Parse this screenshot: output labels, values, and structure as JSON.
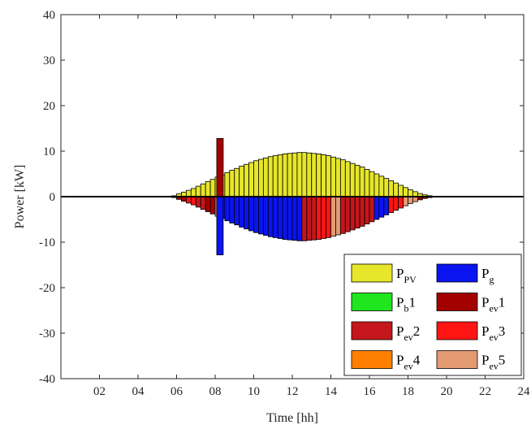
{
  "chart_data": {
    "type": "bar",
    "title": "",
    "xlabel": "Time [hh]",
    "ylabel": "Power [kW]",
    "xlim": [
      0,
      24
    ],
    "ylim": [
      -40,
      40
    ],
    "xticks": [
      2,
      4,
      6,
      8,
      10,
      12,
      14,
      16,
      18,
      20,
      22,
      24
    ],
    "xtick_labels": [
      "02",
      "04",
      "06",
      "08",
      "10",
      "12",
      "14",
      "16",
      "18",
      "20",
      "22",
      "24"
    ],
    "yticks": [
      -40,
      -30,
      -20,
      -10,
      0,
      10,
      20,
      30,
      40
    ],
    "legend_position": "bottom-right",
    "legend": [
      {
        "key": "pv",
        "base": "P",
        "sub": "PV",
        "suffix": "",
        "color": "#e6e62a"
      },
      {
        "key": "g",
        "base": "P",
        "sub": "g",
        "suffix": "",
        "color": "#0a14f0"
      },
      {
        "key": "b1",
        "base": "P",
        "sub": "b",
        "suffix": "1",
        "color": "#1fe61f"
      },
      {
        "key": "ev1",
        "base": "P",
        "sub": "ev",
        "suffix": "1",
        "color": "#a30000"
      },
      {
        "key": "ev2",
        "base": "P",
        "sub": "ev",
        "suffix": "2",
        "color": "#c4161c"
      },
      {
        "key": "ev3",
        "base": "P",
        "sub": "ev",
        "suffix": "3",
        "color": "#ff1414"
      },
      {
        "key": "ev4",
        "base": "P",
        "sub": "ev",
        "suffix": "4",
        "color": "#ff8000"
      },
      {
        "key": "ev5",
        "base": "P",
        "sub": "ev",
        "suffix": "5",
        "color": "#e39a72"
      }
    ],
    "bar_width_h": 0.25,
    "pv_series": {
      "name": "P_PV",
      "start_time": 5.75,
      "values": [
        0.2,
        0.6,
        1.0,
        1.4,
        1.8,
        2.3,
        2.8,
        3.3,
        3.8,
        4.3,
        4.8,
        5.3,
        5.8,
        6.2,
        6.7,
        7.1,
        7.5,
        7.9,
        8.2,
        8.5,
        8.8,
        9.0,
        9.2,
        9.4,
        9.5,
        9.6,
        9.7,
        9.7,
        9.6,
        9.5,
        9.4,
        9.2,
        9.0,
        8.7,
        8.4,
        8.1,
        7.7,
        7.3,
        6.9,
        6.5,
        6.0,
        5.5,
        5.0,
        4.5,
        4.0,
        3.5,
        3.0,
        2.5,
        2.0,
        1.5,
        1.1,
        0.7,
        0.4,
        0.2,
        0.1,
        0.05
      ]
    },
    "negative_segments": [
      {
        "series": "ev1",
        "from": 5.75,
        "to": 6.5
      },
      {
        "series": "ev3",
        "from": 6.5,
        "to": 7.0
      },
      {
        "series": "ev2",
        "from": 7.0,
        "to": 7.5
      },
      {
        "series": "ev1",
        "from": 7.5,
        "to": 8.0
      },
      {
        "series": "ev5",
        "from": 8.0,
        "to": 8.25
      },
      {
        "series": "g",
        "from": 8.25,
        "to": 12.5
      },
      {
        "series": "ev2",
        "from": 12.5,
        "to": 13.25
      },
      {
        "series": "ev3",
        "from": 13.25,
        "to": 14.0
      },
      {
        "series": "ev5",
        "from": 14.0,
        "to": 14.5
      },
      {
        "series": "ev2",
        "from": 14.5,
        "to": 16.25
      },
      {
        "series": "g",
        "from": 16.25,
        "to": 17.0
      },
      {
        "series": "ev3",
        "from": 17.0,
        "to": 17.75
      },
      {
        "series": "ev5",
        "from": 17.75,
        "to": 18.5
      },
      {
        "series": "ev1",
        "from": 18.5,
        "to": 19.5
      }
    ],
    "spike": {
      "time": 8.25,
      "positive_value": 12.8,
      "positive_series": "ev1",
      "negative_value": -12.8,
      "negative_series": "g"
    }
  }
}
